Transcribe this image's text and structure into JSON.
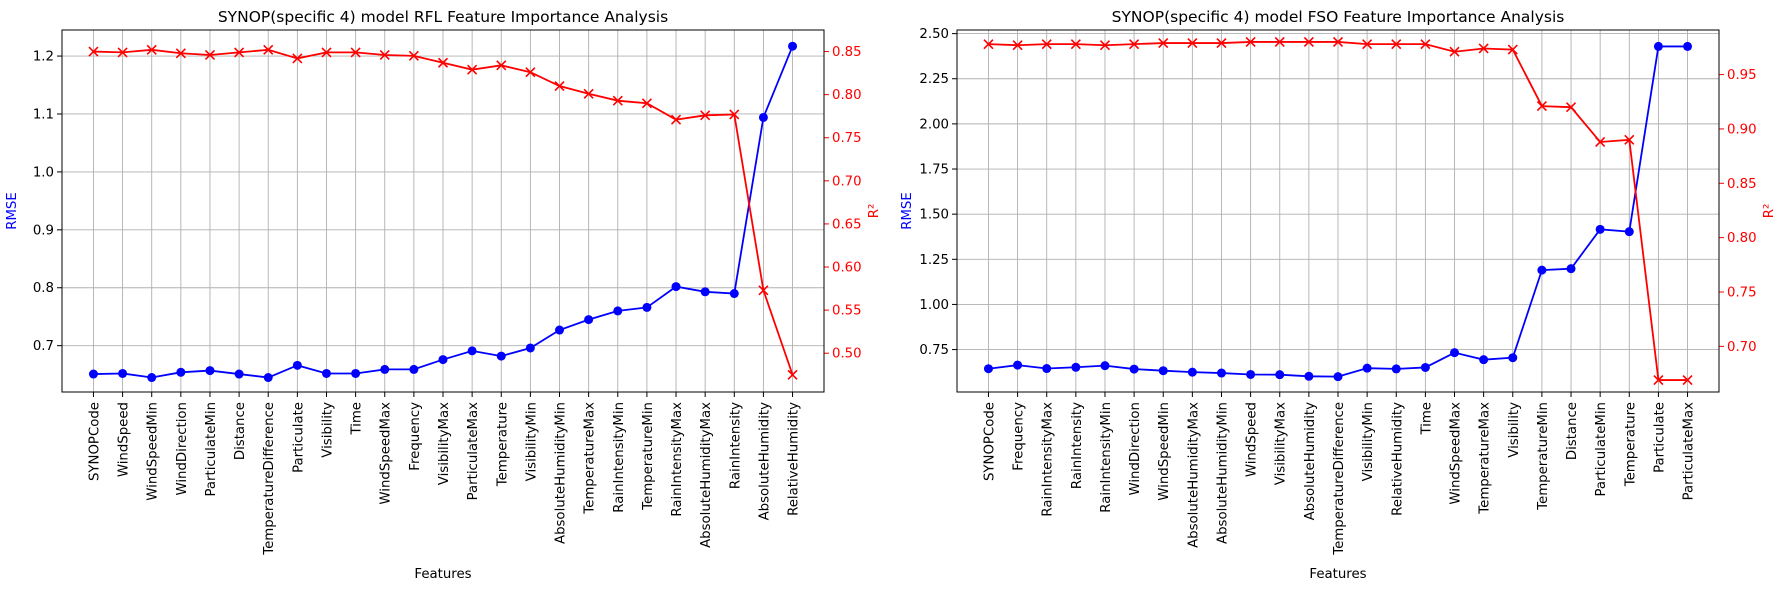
{
  "chart_data": [
    {
      "type": "line",
      "title": "SYNOP(specific 4) model RFL Feature Importance Analysis",
      "xlabel": "Features",
      "ylabel_left": "RMSE",
      "ylabel_right": "R²",
      "categories": [
        "SYNOPCode",
        "WindSpeed",
        "WindSpeedMin",
        "WindDirection",
        "ParticulateMin",
        "Distance",
        "TemperatureDifference",
        "Particulate",
        "Visibility",
        "Time",
        "WindSpeedMax",
        "Frequency",
        "VisibilityMax",
        "ParticulateMax",
        "Temperature",
        "VisibilityMin",
        "AbsoluteHumidityMin",
        "TemperatureMax",
        "RainIntensityMin",
        "TemperatureMin",
        "RainIntensityMax",
        "AbsoluteHumidityMax",
        "RainIntensity",
        "AbsoluteHumidity",
        "RelativeHumidity"
      ],
      "series": [
        {
          "name": "RMSE",
          "axis": "left",
          "color": "#0000ff",
          "marker": "circle",
          "values": [
            0.651,
            0.652,
            0.645,
            0.654,
            0.657,
            0.651,
            0.645,
            0.666,
            0.652,
            0.652,
            0.659,
            0.659,
            0.676,
            0.691,
            0.682,
            0.696,
            0.727,
            0.745,
            0.76,
            0.766,
            0.802,
            0.793,
            0.79,
            1.094,
            1.217
          ]
        },
        {
          "name": "R²",
          "axis": "right",
          "color": "#ff0000",
          "marker": "x",
          "values": [
            0.85,
            0.849,
            0.852,
            0.848,
            0.846,
            0.849,
            0.852,
            0.842,
            0.849,
            0.849,
            0.846,
            0.845,
            0.837,
            0.829,
            0.834,
            0.826,
            0.81,
            0.801,
            0.793,
            0.79,
            0.771,
            0.776,
            0.777,
            0.573,
            0.475
          ]
        }
      ],
      "ylim_left": [
        0.62,
        1.245
      ],
      "yticks_left": [
        "0.7",
        "0.8",
        "0.9",
        "1.0",
        "1.1",
        "1.2"
      ],
      "ylim_right": [
        0.455,
        0.875
      ],
      "yticks_right": [
        "0.50",
        "0.55",
        "0.60",
        "0.65",
        "0.70",
        "0.75",
        "0.80",
        "0.85"
      ],
      "grid": true
    },
    {
      "type": "line",
      "title": "SYNOP(specific 4) model FSO Feature Importance Analysis",
      "xlabel": "Features",
      "ylabel_left": "RMSE",
      "ylabel_right": "R²",
      "categories": [
        "SYNOPCode",
        "Frequency",
        "RainIntensityMax",
        "RainIntensity",
        "RainIntensityMin",
        "WindDirection",
        "WindSpeedMin",
        "AbsoluteHumidityMax",
        "AbsoluteHumidityMin",
        "WindSpeed",
        "VisibilityMax",
        "AbsoluteHumidity",
        "TemperatureDifference",
        "VisibilityMin",
        "RelativeHumidity",
        "Time",
        "WindSpeedMax",
        "TemperatureMax",
        "Visibility",
        "TemperatureMin",
        "Distance",
        "ParticulateMin",
        "Temperature",
        "Particulate",
        "ParticulateMax"
      ],
      "series": [
        {
          "name": "RMSE",
          "axis": "left",
          "color": "#0000ff",
          "marker": "circle",
          "values": [
            0.644,
            0.664,
            0.645,
            0.652,
            0.661,
            0.642,
            0.633,
            0.625,
            0.62,
            0.612,
            0.611,
            0.602,
            0.6,
            0.647,
            0.643,
            0.651,
            0.733,
            0.694,
            0.705,
            1.19,
            1.198,
            1.416,
            1.403,
            2.429,
            2.429
          ]
        },
        {
          "name": "R²",
          "axis": "right",
          "color": "#ff0000",
          "marker": "x",
          "values": [
            0.978,
            0.977,
            0.978,
            0.978,
            0.977,
            0.978,
            0.979,
            0.979,
            0.979,
            0.98,
            0.98,
            0.98,
            0.98,
            0.978,
            0.978,
            0.978,
            0.971,
            0.974,
            0.973,
            0.921,
            0.92,
            0.888,
            0.89,
            0.669,
            0.669
          ]
        }
      ],
      "ylim_left": [
        0.515,
        2.52
      ],
      "yticks_left": [
        "0.75",
        "1.00",
        "1.25",
        "1.50",
        "1.75",
        "2.00",
        "2.25",
        "2.50"
      ],
      "ylim_right": [
        0.658,
        0.991
      ],
      "yticks_right": [
        "0.70",
        "0.75",
        "0.80",
        "0.85",
        "0.90",
        "0.95"
      ],
      "grid": true
    }
  ]
}
